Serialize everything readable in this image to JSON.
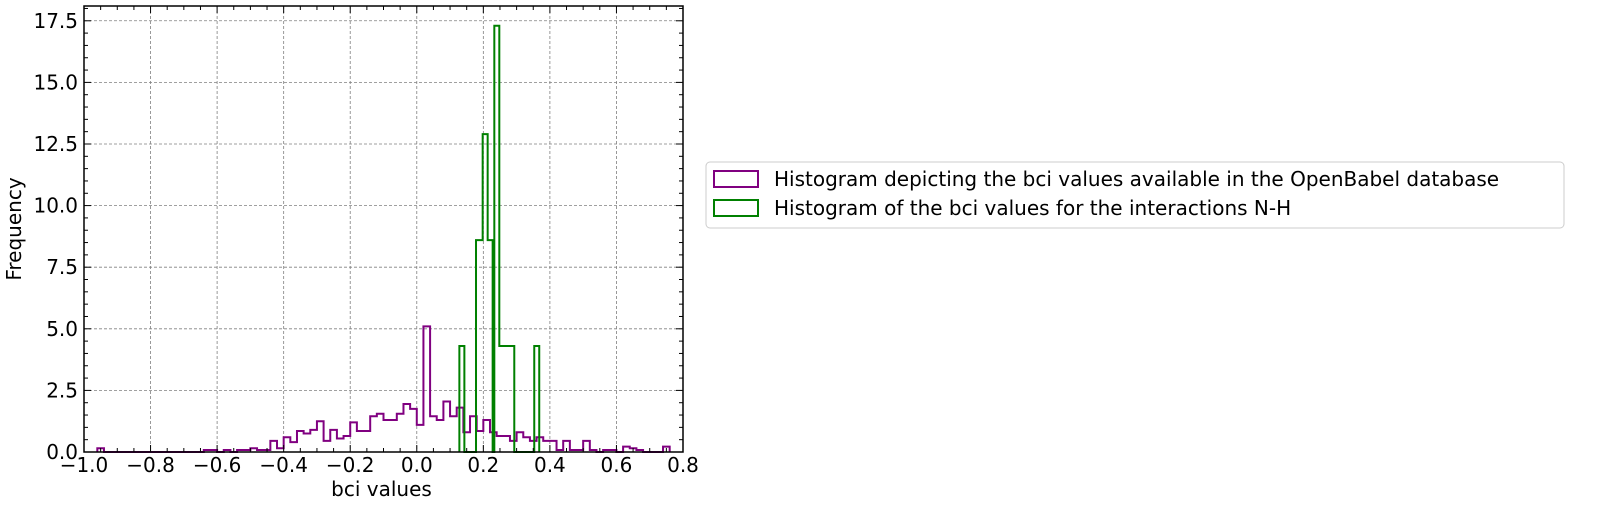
{
  "chart_data": {
    "type": "histogram",
    "xlabel": "bci values",
    "ylabel": "Frequency",
    "xlim": [
      -1.0,
      0.8
    ],
    "ylim": [
      0.0,
      18.1
    ],
    "xticks": [
      -1.0,
      -0.8,
      -0.6,
      -0.4,
      -0.2,
      0.0,
      0.2,
      0.4,
      0.6,
      0.8
    ],
    "xtick_labels": [
      "−1.0",
      "−0.8",
      "−0.6",
      "−0.4",
      "−0.2",
      "0.0",
      "0.2",
      "0.4",
      "0.6",
      "0.8"
    ],
    "yticks": [
      0.0,
      2.5,
      5.0,
      7.5,
      10.0,
      12.5,
      15.0,
      17.5
    ],
    "ytick_labels": [
      "0.0",
      "2.5",
      "5.0",
      "7.5",
      "10.0",
      "12.5",
      "15.0",
      "17.5"
    ],
    "grid": true,
    "legend_position": "outside-right",
    "series": [
      {
        "name": "Histogram depicting the bci values available in the OpenBabel database",
        "color": "#800080",
        "bin_start": -0.96,
        "bin_width": 0.02,
        "counts": [
          0.15,
          0.0,
          0.0,
          0.0,
          0.0,
          0.0,
          0.0,
          0.0,
          0.0,
          0.0,
          0.0,
          0.0,
          0.0,
          0.0,
          0.0,
          0.0,
          0.08,
          0.08,
          0.0,
          0.08,
          0.0,
          0.08,
          0.08,
          0.15,
          0.08,
          0.08,
          0.45,
          0.15,
          0.6,
          0.4,
          0.85,
          0.75,
          0.9,
          1.25,
          0.45,
          0.9,
          0.55,
          0.65,
          1.2,
          0.85,
          0.85,
          1.45,
          1.55,
          1.3,
          1.3,
          1.55,
          1.95,
          1.75,
          1.1,
          5.1,
          1.45,
          1.3,
          2.05,
          1.45,
          1.8,
          0.8,
          1.45,
          0.85,
          1.3,
          0.8,
          0.65,
          0.65,
          0.45,
          0.8,
          0.6,
          0.45,
          0.6,
          0.45,
          0.45,
          0.08,
          0.45,
          0.08,
          0.08,
          0.45,
          0.08,
          0.0,
          0.08,
          0.08,
          0.0,
          0.22,
          0.15,
          0.08,
          0.0,
          0.0,
          0.0,
          0.22
        ]
      },
      {
        "name": "Histogram of the bci values for the interactions N-H",
        "color": "#008000",
        "bins": [
          {
            "x0": 0.128,
            "x1": 0.143,
            "count": 4.3
          },
          {
            "x0": 0.143,
            "x1": 0.178,
            "count": 0.0
          },
          {
            "x0": 0.178,
            "x1": 0.198,
            "count": 8.6
          },
          {
            "x0": 0.198,
            "x1": 0.213,
            "count": 12.9
          },
          {
            "x0": 0.213,
            "x1": 0.228,
            "count": 8.6
          },
          {
            "x0": 0.228,
            "x1": 0.233,
            "count": 0.0
          },
          {
            "x0": 0.233,
            "x1": 0.248,
            "count": 17.3
          },
          {
            "x0": 0.248,
            "x1": 0.293,
            "count": 4.3
          },
          {
            "x0": 0.293,
            "x1": 0.353,
            "count": 0.0
          },
          {
            "x0": 0.353,
            "x1": 0.368,
            "count": 4.3
          }
        ]
      }
    ]
  }
}
